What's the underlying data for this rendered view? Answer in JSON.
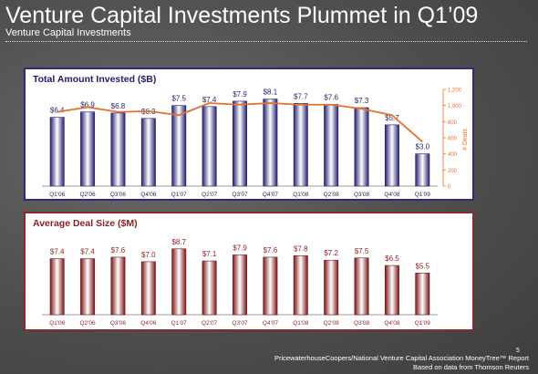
{
  "slide": {
    "title": "Venture Capital Investments Plummet in Q1’09",
    "subtitle": "Venture Capital Investments",
    "source_line1": "PricewaterhouseCoopers/National Venture Capital Association MoneyTree™ Report",
    "source_line2": "Based on data from Thomson Reuters",
    "page_number": "5"
  },
  "colors": {
    "bar1": "#2b2a7a",
    "bar2": "#8b1f1f",
    "line": "#e8702a",
    "title1": "#1f1f6b",
    "title2": "#8b1f1f"
  },
  "chart_data": [
    {
      "type": "bar",
      "title": "Total Amount Invested ($B)",
      "categories": [
        "Q1'06",
        "Q2'06",
        "Q3'06",
        "Q4'06",
        "Q1'07",
        "Q2'07",
        "Q3'07",
        "Q4'07",
        "Q1'08",
        "Q2'08",
        "Q3'08",
        "Q4'08",
        "Q1'09"
      ],
      "values": [
        6.4,
        6.9,
        6.8,
        6.3,
        7.5,
        7.4,
        7.9,
        8.1,
        7.7,
        7.6,
        7.3,
        5.7,
        3.0
      ],
      "value_labels": [
        "$6.4",
        "$6.9",
        "$6.8",
        "$6.3",
        "$7.5",
        "$7.4",
        "$7.9",
        "$8.1",
        "$7.7",
        "$7.6",
        "$7.3",
        "$5.7",
        "$3.0"
      ],
      "ylim": [
        0,
        9
      ],
      "secondary": {
        "type": "line",
        "ylabel": "# Deals",
        "ylim": [
          0,
          1200
        ],
        "ticks": [
          "0",
          "200",
          "400",
          "600",
          "800",
          "1,000",
          "1,200"
        ],
        "values": [
          920,
          980,
          920,
          930,
          880,
          1030,
          1010,
          1030,
          1010,
          1010,
          960,
          880,
          550
        ]
      }
    },
    {
      "type": "bar",
      "title": "Average Deal Size ($M)",
      "categories": [
        "Q1'06",
        "Q2'06",
        "Q3'06",
        "Q4'06",
        "Q1'07",
        "Q2'07",
        "Q3'07",
        "Q4'07",
        "Q1'08",
        "Q2'08",
        "Q3'08",
        "Q4'08",
        "Q1'09"
      ],
      "values": [
        7.4,
        7.4,
        7.6,
        7.0,
        8.7,
        7.1,
        7.9,
        7.6,
        7.8,
        7.2,
        7.5,
        6.5,
        5.5
      ],
      "value_labels": [
        "$7.4",
        "$7.4",
        "$7.6",
        "$7.0",
        "$8.7",
        "$7.1",
        "$7.9",
        "$7.6",
        "$7.8",
        "$7.2",
        "$7.5",
        "$6.5",
        "$5.5"
      ],
      "ylim": [
        0,
        10
      ]
    }
  ]
}
